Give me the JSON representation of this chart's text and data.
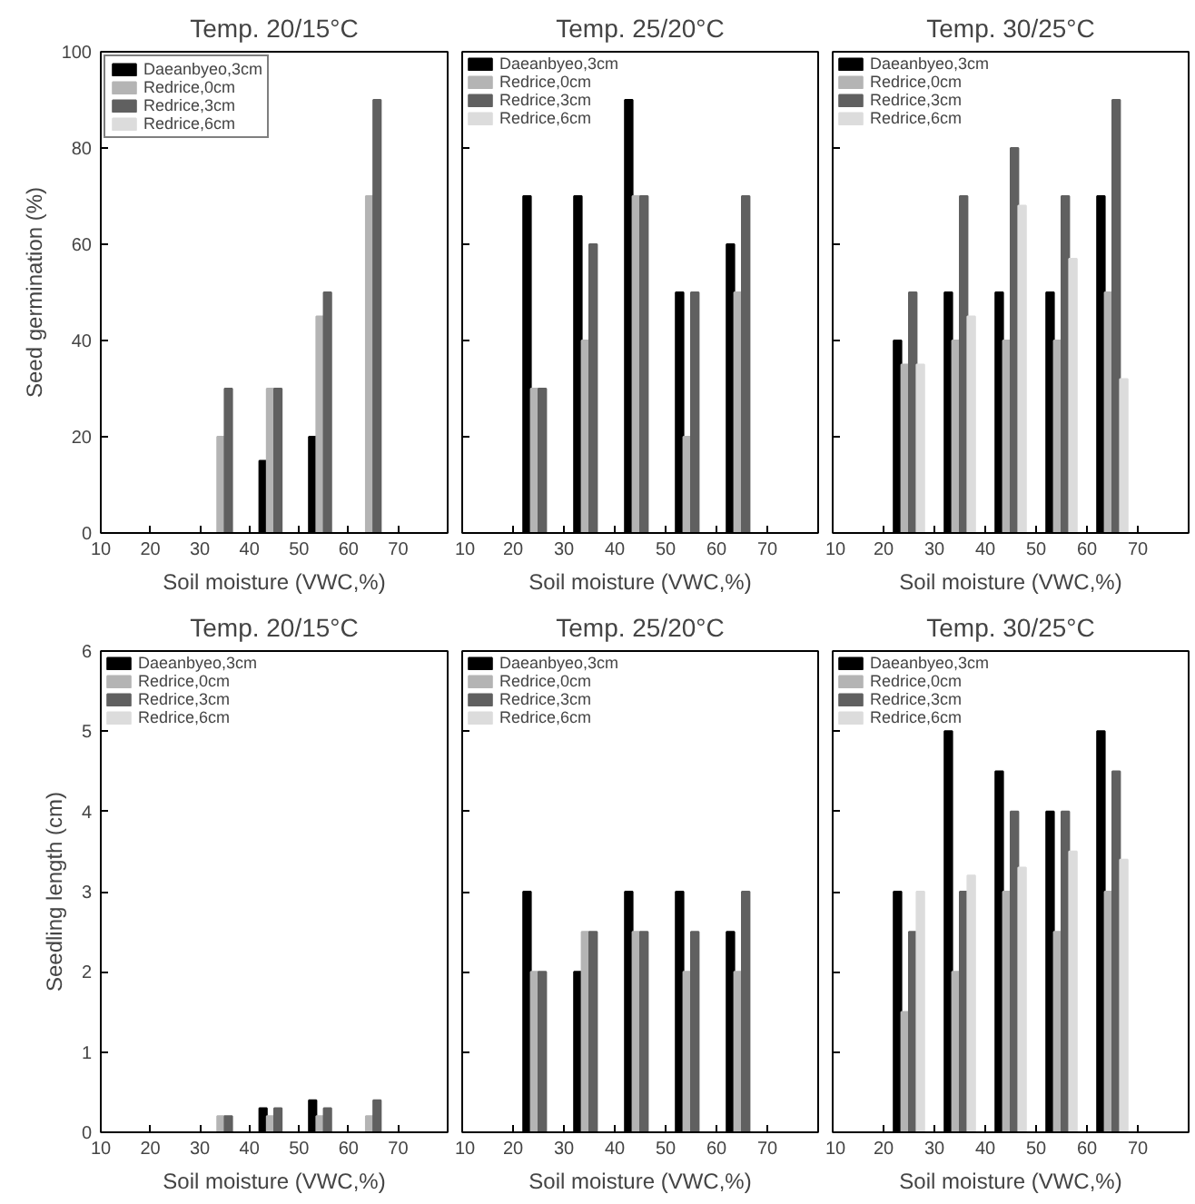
{
  "chart_data": [
    {
      "type": "bar",
      "title": "Temp. 20/15°C",
      "xlabel": "Soil moisture (VWC,%)",
      "ylabel": "Seed germination (%)",
      "x": [
        35,
        45,
        55,
        65
      ],
      "xlim": [
        10,
        80
      ],
      "xticks": [
        10,
        20,
        30,
        40,
        50,
        60,
        70
      ],
      "ylim": [
        0,
        100
      ],
      "yticks": [
        0,
        20,
        40,
        60,
        80,
        100
      ],
      "legend": "top left",
      "grid": false,
      "series": [
        {
          "name": "Daeanbyeo,3cm",
          "color": "#000000",
          "values": [
            null,
            15,
            20,
            null
          ]
        },
        {
          "name": "Redrice,0cm",
          "color": "#b4b4b4",
          "values": [
            20,
            30,
            45,
            70
          ]
        },
        {
          "name": "Redrice,3cm",
          "color": "#606060",
          "values": [
            30,
            30,
            50,
            90
          ]
        },
        {
          "name": "Redrice,6cm",
          "color": "#dcdcdc",
          "values": [
            null,
            null,
            null,
            null
          ]
        }
      ]
    },
    {
      "type": "bar",
      "title": "Temp. 25/20°C",
      "xlabel": "Soil moisture (VWC,%)",
      "x": [
        25,
        35,
        45,
        55,
        65
      ],
      "xlim": [
        10,
        80
      ],
      "xticks": [
        10,
        20,
        30,
        40,
        50,
        60,
        70
      ],
      "ylim": [
        0,
        100
      ],
      "yticks": [
        0,
        20,
        40,
        60,
        80,
        100
      ],
      "tick_labels": "x",
      "legend": "top left",
      "grid": false,
      "series": [
        {
          "name": "Daeanbyeo,3cm",
          "color": "#000000",
          "values": [
            70,
            70,
            90,
            50,
            60
          ]
        },
        {
          "name": "Redrice,0cm",
          "color": "#b4b4b4",
          "values": [
            30,
            40,
            70,
            20,
            50
          ]
        },
        {
          "name": "Redrice,3cm",
          "color": "#606060",
          "values": [
            30,
            60,
            70,
            50,
            70
          ]
        },
        {
          "name": "Redrice,6cm",
          "color": "#dcdcdc",
          "values": [
            null,
            null,
            null,
            null,
            null
          ]
        }
      ]
    },
    {
      "type": "bar",
      "title": "Temp. 30/25°C",
      "xlabel": "Soil moisture (VWC,%)",
      "x": [
        25,
        35,
        45,
        55,
        65
      ],
      "xlim": [
        10,
        80
      ],
      "xticks": [
        10,
        20,
        30,
        40,
        50,
        60,
        70
      ],
      "ylim": [
        0,
        100
      ],
      "yticks": [
        0,
        20,
        40,
        60,
        80,
        100
      ],
      "tick_labels": "x",
      "legend": "top left",
      "grid": false,
      "series": [
        {
          "name": "Daeanbyeo,3cm",
          "color": "#000000",
          "values": [
            40,
            50,
            50,
            50,
            70
          ]
        },
        {
          "name": "Redrice,0cm",
          "color": "#b4b4b4",
          "values": [
            35,
            40,
            40,
            40,
            50
          ]
        },
        {
          "name": "Redrice,3cm",
          "color": "#606060",
          "values": [
            50,
            70,
            80,
            70,
            90
          ]
        },
        {
          "name": "Redrice,6cm",
          "color": "#dcdcdc",
          "values": [
            35,
            45,
            68,
            57,
            32
          ]
        }
      ]
    },
    {
      "type": "bar",
      "title": "Temp. 20/15°C",
      "xlabel": "Soil moisture (VWC,%)",
      "ylabel": "Seedling length (cm)",
      "x": [
        35,
        45,
        55,
        65
      ],
      "xlim": [
        10,
        80
      ],
      "xticks": [
        10,
        20,
        30,
        40,
        50,
        60,
        70
      ],
      "ylim": [
        0,
        6
      ],
      "yticks": [
        0,
        1,
        2,
        3,
        4,
        5,
        6
      ],
      "legend": "top left",
      "grid": false,
      "series": [
        {
          "name": "Daeanbyeo,3cm",
          "color": "#000000",
          "values": [
            null,
            0.3,
            0.4,
            null
          ]
        },
        {
          "name": "Redrice,0cm",
          "color": "#b4b4b4",
          "values": [
            0.2,
            0.2,
            0.2,
            0.2
          ]
        },
        {
          "name": "Redrice,3cm",
          "color": "#606060",
          "values": [
            0.2,
            0.3,
            0.3,
            0.4
          ]
        },
        {
          "name": "Redrice,6cm",
          "color": "#dcdcdc",
          "values": [
            null,
            null,
            null,
            null
          ]
        }
      ]
    },
    {
      "type": "bar",
      "title": "Temp. 25/20°C",
      "xlabel": "Soil moisture (VWC,%)",
      "x": [
        25,
        35,
        45,
        55,
        65
      ],
      "xlim": [
        10,
        80
      ],
      "xticks": [
        10,
        20,
        30,
        40,
        50,
        60,
        70
      ],
      "ylim": [
        0,
        6
      ],
      "yticks": [
        0,
        1,
        2,
        3,
        4,
        5,
        6
      ],
      "tick_labels": "x",
      "legend": "top left",
      "grid": false,
      "series": [
        {
          "name": "Daeanbyeo,3cm",
          "color": "#000000",
          "values": [
            3,
            2,
            3,
            3,
            2.5
          ]
        },
        {
          "name": "Redrice,0cm",
          "color": "#b4b4b4",
          "values": [
            2,
            2.5,
            2.5,
            2,
            2
          ]
        },
        {
          "name": "Redrice,3cm",
          "color": "#606060",
          "values": [
            2,
            2.5,
            2.5,
            2.5,
            3
          ]
        },
        {
          "name": "Redrice,6cm",
          "color": "#dcdcdc",
          "values": [
            null,
            null,
            null,
            null,
            null
          ]
        }
      ]
    },
    {
      "type": "bar",
      "title": "Temp. 30/25°C",
      "xlabel": "Soil moisture (VWC,%)",
      "x": [
        25,
        35,
        45,
        55,
        65
      ],
      "xlim": [
        10,
        80
      ],
      "xticks": [
        10,
        20,
        30,
        40,
        50,
        60,
        70
      ],
      "ylim": [
        0,
        6
      ],
      "yticks": [
        0,
        1,
        2,
        3,
        4,
        5,
        6
      ],
      "tick_labels": "x",
      "legend": "top left",
      "grid": false,
      "series": [
        {
          "name": "Daeanbyeo,3cm",
          "color": "#000000",
          "values": [
            3,
            5,
            4.5,
            4,
            5
          ]
        },
        {
          "name": "Redrice,0cm",
          "color": "#b4b4b4",
          "values": [
            1.5,
            2,
            3,
            2.5,
            3
          ]
        },
        {
          "name": "Redrice,3cm",
          "color": "#606060",
          "values": [
            2.5,
            3,
            4,
            4,
            4.5
          ]
        },
        {
          "name": "Redrice,6cm",
          "color": "#dcdcdc",
          "values": [
            3,
            3.2,
            3.3,
            3.5,
            3.4
          ]
        }
      ]
    }
  ]
}
